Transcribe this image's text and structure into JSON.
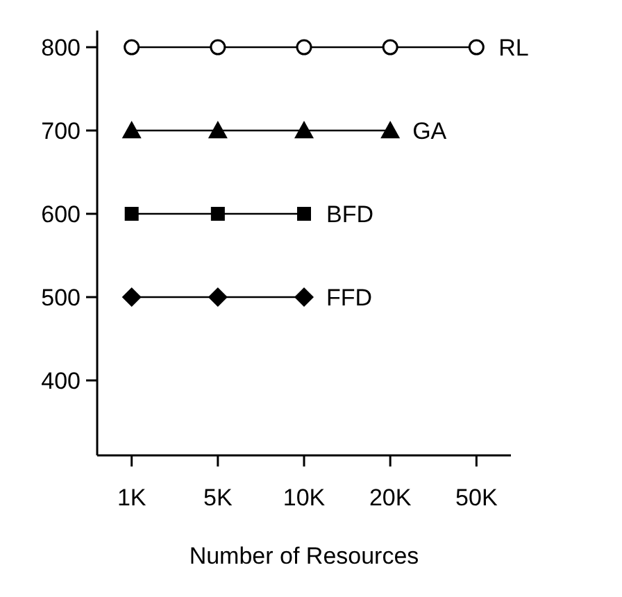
{
  "chart_data": {
    "type": "line",
    "xlabel": "Number of Resources",
    "categories": [
      "1K",
      "5K",
      "10K",
      "20K",
      "50K"
    ],
    "ylim": [
      310,
      820
    ],
    "yticks": [
      400,
      500,
      600,
      700,
      800
    ],
    "grid": false,
    "series": [
      {
        "name": "RL",
        "color": "#000000",
        "marker": "circle",
        "values": [
          800,
          800,
          800,
          800,
          800
        ]
      },
      {
        "name": "GA",
        "color": "#000000",
        "marker": "triangle",
        "values": [
          700,
          700,
          700,
          700,
          null
        ]
      },
      {
        "name": "BFD",
        "color": "#000000",
        "marker": "square",
        "values": [
          600,
          600,
          600,
          null,
          null
        ]
      },
      {
        "name": "FFD",
        "color": "#000000",
        "marker": "diamond",
        "values": [
          500,
          500,
          500,
          null,
          null
        ]
      }
    ]
  }
}
